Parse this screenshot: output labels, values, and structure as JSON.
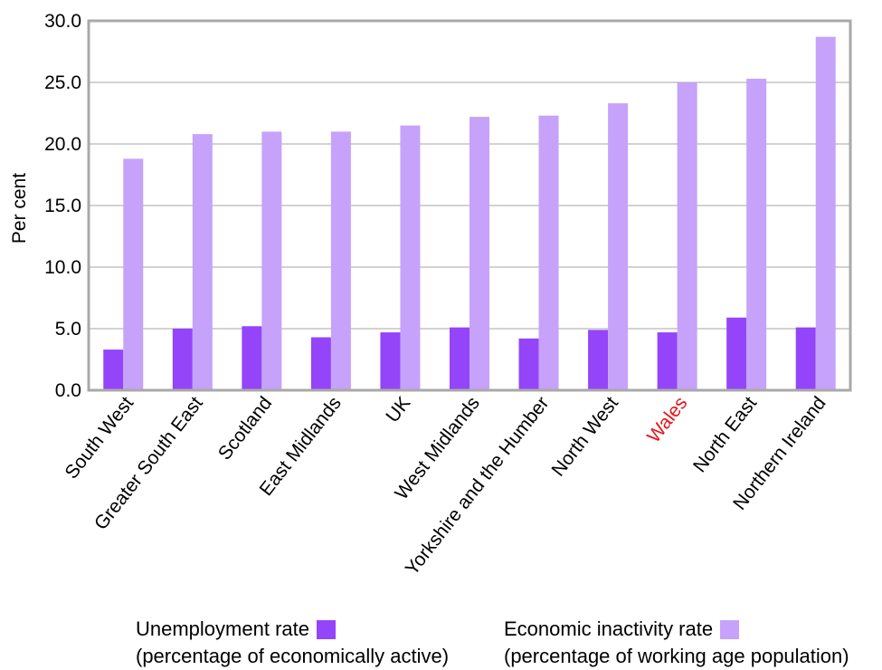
{
  "chart_data": {
    "type": "bar",
    "ylabel": "Per cent",
    "ylim": [
      0,
      30
    ],
    "yticks": [
      0,
      5,
      10,
      15,
      20,
      25,
      30
    ],
    "ytick_labels": [
      "0.0",
      "5.0",
      "10.0",
      "15.0",
      "20.0",
      "25.0",
      "30.0"
    ],
    "grid": true,
    "highlight_category": "Wales",
    "highlight_color": "#e8141c",
    "categories": [
      "South West",
      "Greater South East",
      "Scotland",
      "East Midlands",
      "UK",
      "West Midlands",
      "Yorkshire and the Humber",
      "North West",
      "Wales",
      "North East",
      "Northern Ireland"
    ],
    "series": [
      {
        "name": "Unemployment rate",
        "legend_sub": "(percentage of economically active)",
        "color": "#9444f9",
        "values": [
          3.3,
          5.0,
          5.2,
          4.3,
          4.7,
          5.1,
          4.2,
          4.9,
          4.7,
          5.9,
          5.1
        ]
      },
      {
        "name": "Economic inactivity rate",
        "legend_sub": "(percentage of working age population)",
        "color": "#c6a2fa",
        "values": [
          18.8,
          20.8,
          21.0,
          21.0,
          21.5,
          22.2,
          22.3,
          23.3,
          25.0,
          25.3,
          28.7
        ]
      }
    ],
    "legend_position": "bottom"
  }
}
